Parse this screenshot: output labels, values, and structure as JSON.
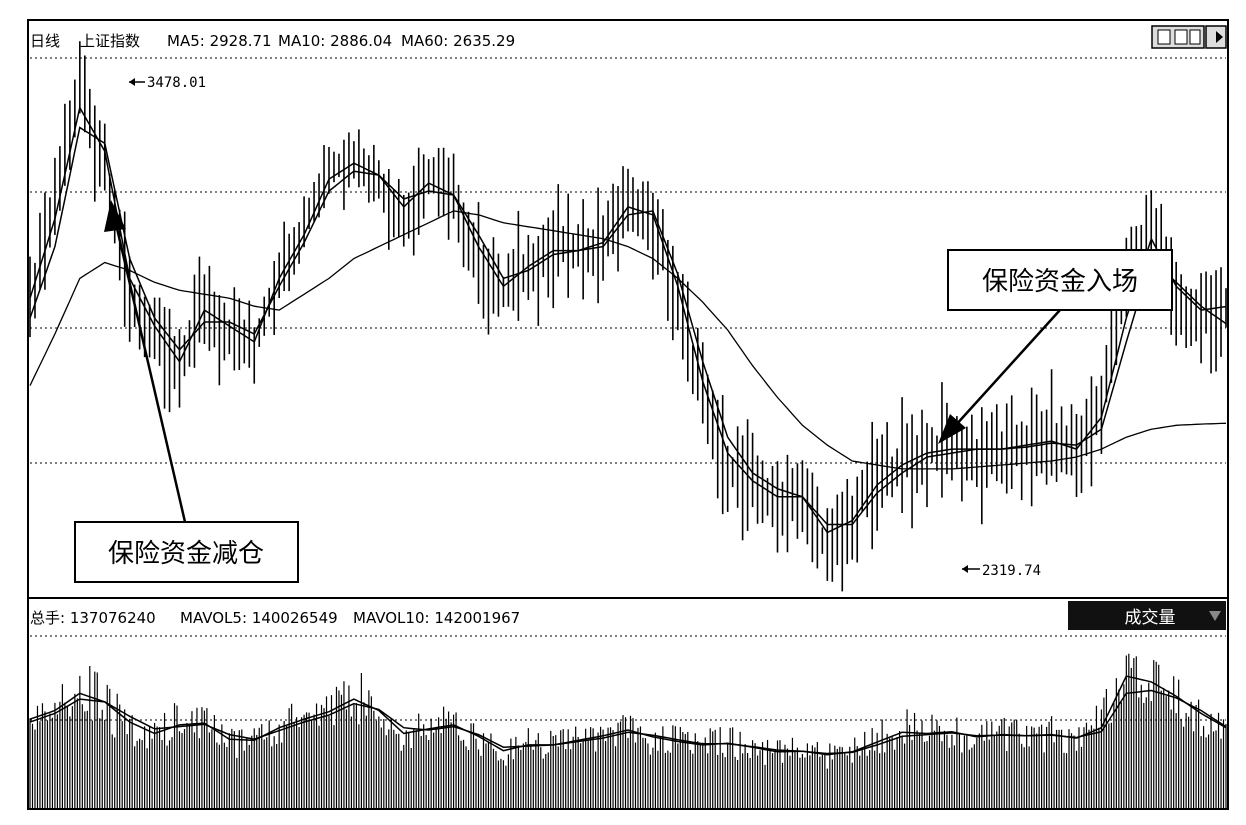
{
  "header": {
    "period": "日线",
    "index_name": "上证指数",
    "ma5": "MA5: 2928.71",
    "ma10": "MA10: 2886.04",
    "ma60": "MA60: 2635.29"
  },
  "volume_header": {
    "total": "总手: 137076240",
    "mavol5": "MAVOL5: 140026549",
    "mavol10": "MAVOL10: 142001967",
    "dropdown_label": "成交量"
  },
  "annotations": {
    "high_label": "3478.01",
    "low_label": "2319.74",
    "reduce_callout": "保险资金减仓",
    "enter_callout": "保险资金入场"
  },
  "colors": {
    "line": "#000000",
    "background": "#ffffff",
    "dropdown_bg": "#111111",
    "dropdown_text": "#ffffff"
  },
  "icons": [
    "toolbar-window-icon",
    "toolbar-arrow-icon",
    "dropdown-chevron-icon"
  ],
  "chart_data": [
    {
      "type": "line",
      "title": "上证指数",
      "period": "日线",
      "ylim": [
        2200,
        3550
      ],
      "x": [
        0,
        5,
        10,
        15,
        20,
        25,
        30,
        35,
        40,
        45,
        50,
        55,
        60,
        65,
        70,
        75,
        80,
        85,
        90,
        95,
        100,
        105,
        110,
        115,
        120,
        125,
        130,
        135,
        140,
        145,
        150,
        155,
        160,
        165,
        170,
        175,
        180,
        185,
        190,
        195,
        200,
        205,
        210,
        215,
        220,
        225,
        230,
        235,
        240
      ],
      "series": [
        {
          "name": "price",
          "values": [
            2940,
            3200,
            3478,
            3300,
            2960,
            2860,
            2760,
            2950,
            2860,
            2820,
            3020,
            3130,
            3280,
            3300,
            3250,
            3150,
            3260,
            3200,
            3050,
            2960,
            3040,
            3080,
            3070,
            3100,
            3200,
            3150,
            2950,
            2700,
            2530,
            2480,
            2440,
            2460,
            2319,
            2400,
            2500,
            2540,
            2570,
            2580,
            2560,
            2570,
            2580,
            2600,
            2560,
            2700,
            3000,
            3150,
            2950,
            2900,
            2930
          ]
        },
        {
          "name": "MA5",
          "values": [
            2950,
            3150,
            3430,
            3320,
            3000,
            2880,
            2790,
            2920,
            2880,
            2840,
            3000,
            3110,
            3250,
            3290,
            3260,
            3180,
            3240,
            3210,
            3080,
            2980,
            3030,
            3070,
            3070,
            3090,
            3180,
            3160,
            2980,
            2740,
            2560,
            2490,
            2450,
            2450,
            2360,
            2390,
            2480,
            2530,
            2560,
            2570,
            2570,
            2570,
            2580,
            2590,
            2570,
            2650,
            2900,
            3100,
            2980,
            2920,
            2929
          ]
        },
        {
          "name": "MA10",
          "values": [
            2900,
            3080,
            3380,
            3340,
            3050,
            2900,
            2820,
            2890,
            2890,
            2860,
            2980,
            3090,
            3220,
            3270,
            3260,
            3200,
            3220,
            3210,
            3110,
            3000,
            3020,
            3060,
            3070,
            3080,
            3160,
            3170,
            3010,
            2790,
            2600,
            2510,
            2470,
            2450,
            2380,
            2380,
            2460,
            2510,
            2550,
            2560,
            2570,
            2570,
            2575,
            2585,
            2580,
            2620,
            2840,
            3050,
            2990,
            2930,
            2886
          ]
        },
        {
          "name": "MA60",
          "values": [
            2730,
            2860,
            3000,
            3040,
            3020,
            2990,
            2970,
            2960,
            2950,
            2930,
            2920,
            2960,
            3000,
            3050,
            3080,
            3110,
            3140,
            3170,
            3160,
            3140,
            3130,
            3120,
            3110,
            3100,
            3080,
            3050,
            3000,
            2940,
            2870,
            2780,
            2700,
            2630,
            2580,
            2540,
            2530,
            2520,
            2520,
            2520,
            2525,
            2530,
            2535,
            2540,
            2550,
            2570,
            2600,
            2620,
            2630,
            2633,
            2635
          ]
        }
      ]
    },
    {
      "type": "bar",
      "title": "成交量",
      "ylim": [
        0,
        300000000
      ],
      "x": [
        0,
        5,
        10,
        15,
        20,
        25,
        30,
        35,
        40,
        45,
        50,
        55,
        60,
        65,
        70,
        75,
        80,
        85,
        90,
        95,
        100,
        105,
        110,
        115,
        120,
        125,
        130,
        135,
        140,
        145,
        150,
        155,
        160,
        165,
        170,
        175,
        180,
        185,
        190,
        195,
        200,
        205,
        210,
        215,
        220,
        225,
        230,
        235,
        240
      ],
      "series": [
        {
          "name": "volume",
          "values": [
            160000000,
            175000000,
            220000000,
            180000000,
            140000000,
            120000000,
            155000000,
            150000000,
            110000000,
            120000000,
            150000000,
            160000000,
            175000000,
            200000000,
            165000000,
            120000000,
            140000000,
            150000000,
            120000000,
            95000000,
            115000000,
            110000000,
            120000000,
            130000000,
            140000000,
            120000000,
            115000000,
            110000000,
            115000000,
            105000000,
            95000000,
            100000000,
            90000000,
            100000000,
            120000000,
            140000000,
            130000000,
            135000000,
            120000000,
            130000000,
            125000000,
            130000000,
            120000000,
            150000000,
            270000000,
            230000000,
            190000000,
            160000000,
            137076240
          ]
        },
        {
          "name": "MAVOL5",
          "values": [
            155000000,
            170000000,
            200000000,
            185000000,
            150000000,
            130000000,
            145000000,
            148000000,
            120000000,
            118000000,
            140000000,
            155000000,
            168000000,
            190000000,
            170000000,
            130000000,
            138000000,
            145000000,
            125000000,
            100000000,
            110000000,
            110000000,
            118000000,
            126000000,
            136000000,
            124000000,
            116000000,
            110000000,
            113000000,
            106000000,
            98000000,
            99000000,
            93000000,
            98000000,
            115000000,
            132000000,
            130000000,
            133000000,
            124000000,
            128000000,
            126000000,
            128000000,
            122000000,
            140000000,
            230000000,
            220000000,
            195000000,
            165000000,
            140026549
          ]
        },
        {
          "name": "MAVOL10",
          "values": [
            150000000,
            165000000,
            190000000,
            185000000,
            160000000,
            138000000,
            142000000,
            146000000,
            128000000,
            120000000,
            135000000,
            150000000,
            162000000,
            182000000,
            172000000,
            140000000,
            136000000,
            142000000,
            128000000,
            106000000,
            108000000,
            110000000,
            116000000,
            122000000,
            132000000,
            127000000,
            119000000,
            112000000,
            112000000,
            107000000,
            101000000,
            99000000,
            95000000,
            97000000,
            110000000,
            125000000,
            128000000,
            131000000,
            126000000,
            127000000,
            126000000,
            127000000,
            123000000,
            133000000,
            200000000,
            205000000,
            192000000,
            170000000,
            142001967
          ]
        }
      ]
    }
  ]
}
